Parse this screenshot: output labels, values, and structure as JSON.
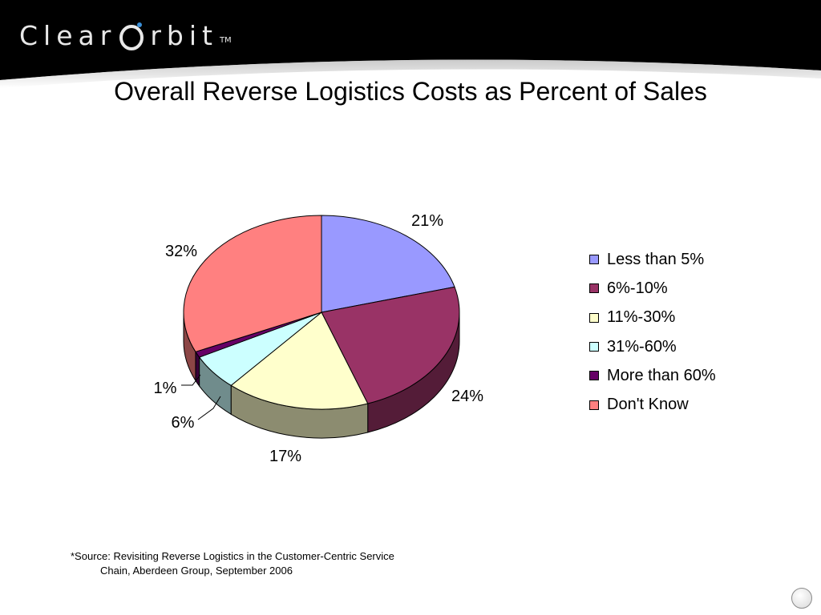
{
  "header": {
    "logo_text_left": "Clear",
    "logo_text_right": "rbit",
    "logo_tm": "TM"
  },
  "colors": {
    "header_bg": "#000000",
    "less_than_5": "#9999FF",
    "six_to_ten": "#993366",
    "eleven_to_thirty": "#FFFFCC",
    "thirtyone_to_sixty": "#CCFFFF",
    "more_than_60": "#660066",
    "dont_know": "#FF8080"
  },
  "chart_data": {
    "type": "pie",
    "title": "Overall Reverse Logistics Costs as Percent of Sales",
    "legend_position": "right",
    "categories": [
      "Less than 5%",
      "6%-10%",
      "11%-30%",
      "31%-60%",
      "More than 60%",
      "Don't Know"
    ],
    "values": [
      21,
      24,
      17,
      6,
      1,
      32
    ],
    "data_labels": [
      "21%",
      "24%",
      "17%",
      "6%",
      "1%",
      "32%"
    ],
    "colors": [
      "#9999FF",
      "#993366",
      "#FFFFCC",
      "#CCFFFF",
      "#660066",
      "#FF8080"
    ],
    "style": "3d"
  },
  "footnote": {
    "line1": "*Source: Revisiting Reverse Logistics in the Customer-Centric Service",
    "line2": "Chain, Aberdeen Group, September 2006"
  }
}
